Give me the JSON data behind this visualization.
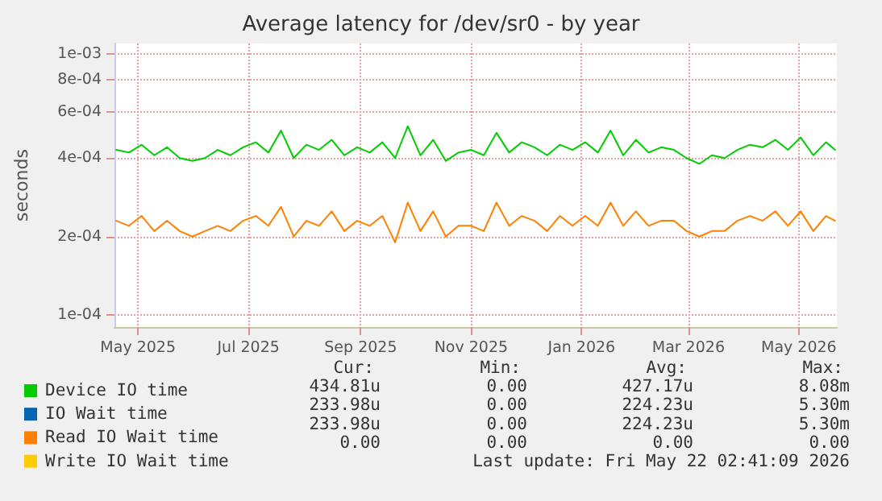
{
  "chart_data": {
    "type": "line",
    "title": "Average latency for /dev/sr0 - by year",
    "ylabel": "seconds",
    "log": "y",
    "grid": true,
    "legend": "bottom",
    "marker": "none",
    "line_style": "solid",
    "x": [
      "2025-04-19",
      "2025-04-26",
      "2025-05-03",
      "2025-05-10",
      "2025-05-17",
      "2025-05-24",
      "2025-05-31",
      "2025-06-07",
      "2025-06-14",
      "2025-06-21",
      "2025-06-28",
      "2025-07-05",
      "2025-07-12",
      "2025-07-19",
      "2025-07-26",
      "2025-08-02",
      "2025-08-09",
      "2025-08-16",
      "2025-08-23",
      "2025-08-30",
      "2025-09-06",
      "2025-09-13",
      "2025-09-20",
      "2025-09-27",
      "2025-10-04",
      "2025-10-11",
      "2025-10-18",
      "2025-10-25",
      "2025-11-01",
      "2025-11-08",
      "2025-11-15",
      "2025-11-22",
      "2025-11-29",
      "2025-12-06",
      "2025-12-13",
      "2025-12-20",
      "2025-12-27",
      "2026-01-03",
      "2026-01-10",
      "2026-01-17",
      "2026-01-24",
      "2026-01-31",
      "2026-02-07",
      "2026-02-14",
      "2026-02-21",
      "2026-02-28",
      "2026-03-07",
      "2026-03-14",
      "2026-03-21",
      "2026-03-28",
      "2026-04-04",
      "2026-04-11",
      "2026-04-18",
      "2026-04-25",
      "2026-05-02",
      "2026-05-09",
      "2026-05-16",
      "2026-05-21"
    ],
    "series": [
      {
        "name": "Device IO time",
        "color": "#00cc00",
        "values": [
          0.00043,
          0.00042,
          0.00045,
          0.00041,
          0.00044,
          0.0004,
          0.00039,
          0.0004,
          0.00043,
          0.00041,
          0.00044,
          0.00046,
          0.00042,
          0.00051,
          0.0004,
          0.00045,
          0.00043,
          0.00047,
          0.00041,
          0.00044,
          0.00042,
          0.00046,
          0.0004,
          0.00053,
          0.00041,
          0.00047,
          0.00039,
          0.00042,
          0.00043,
          0.00041,
          0.0005,
          0.00042,
          0.00046,
          0.00044,
          0.00041,
          0.00045,
          0.00043,
          0.00046,
          0.00042,
          0.00051,
          0.00041,
          0.00047,
          0.00042,
          0.00044,
          0.00043,
          0.0004,
          0.00038,
          0.00041,
          0.0004,
          0.00043,
          0.00045,
          0.00044,
          0.00047,
          0.00043,
          0.00048,
          0.00041,
          0.00046,
          0.00043
        ]
      },
      {
        "name": "IO Wait time",
        "color": "#0066b3",
        "values": [
          null,
          null,
          null,
          null,
          null,
          null,
          null,
          null,
          null,
          null,
          null,
          null,
          null,
          null,
          null,
          null,
          null,
          null,
          null,
          null,
          null,
          null,
          null,
          null,
          null,
          null,
          null,
          null,
          null,
          null,
          null,
          null,
          null,
          null,
          null,
          null,
          null,
          null,
          null,
          null,
          null,
          null,
          null,
          null,
          null,
          null,
          null,
          null,
          null,
          null,
          null,
          null,
          null,
          null,
          null,
          null,
          null,
          null
        ]
      },
      {
        "name": "Read IO Wait time",
        "color": "#ff8000",
        "values": [
          0.00023,
          0.00022,
          0.00024,
          0.00021,
          0.00023,
          0.00021,
          0.0002,
          0.00021,
          0.00022,
          0.00021,
          0.00023,
          0.00024,
          0.00022,
          0.00026,
          0.0002,
          0.00023,
          0.00022,
          0.00025,
          0.00021,
          0.00023,
          0.00022,
          0.00024,
          0.00019,
          0.00027,
          0.00021,
          0.00025,
          0.0002,
          0.00022,
          0.00022,
          0.00021,
          0.00027,
          0.00022,
          0.00024,
          0.00023,
          0.00021,
          0.00024,
          0.00022,
          0.00024,
          0.00022,
          0.00027,
          0.00022,
          0.00025,
          0.00022,
          0.00023,
          0.00023,
          0.00021,
          0.0002,
          0.00021,
          0.00021,
          0.00023,
          0.00024,
          0.00023,
          0.00025,
          0.00022,
          0.00025,
          0.00021,
          0.00024,
          0.00023
        ]
      },
      {
        "name": "Write IO Wait time",
        "color": "#ffcc00",
        "values": [
          null,
          null,
          null,
          null,
          null,
          null,
          null,
          null,
          null,
          null,
          null,
          null,
          null,
          null,
          null,
          null,
          null,
          null,
          null,
          null,
          null,
          null,
          null,
          null,
          null,
          null,
          null,
          null,
          null,
          null,
          null,
          null,
          null,
          null,
          null,
          null,
          null,
          null,
          null,
          null,
          null,
          null,
          null,
          null,
          null,
          null,
          null,
          null,
          null,
          null,
          null,
          null,
          null,
          null,
          null,
          null,
          null,
          null
        ]
      }
    ],
    "xlim": [
      "2025-04-18",
      "2026-05-22"
    ],
    "xticks": [
      {
        "value": "2025-05-01",
        "label": "May 2025"
      },
      {
        "value": "2025-07-01",
        "label": "Jul 2025"
      },
      {
        "value": "2025-09-01",
        "label": "Sep 2025"
      },
      {
        "value": "2025-11-01",
        "label": "Nov 2025"
      },
      {
        "value": "2026-01-01",
        "label": "Jan 2026"
      },
      {
        "value": "2026-03-01",
        "label": "Mar 2026"
      },
      {
        "value": "2026-05-01",
        "label": "May 2026"
      }
    ],
    "ylim": [
      9e-05,
      0.0011
    ],
    "yticks": [
      {
        "value": 0.0001,
        "label": "1e-04"
      },
      {
        "value": 0.0002,
        "label": "2e-04"
      },
      {
        "value": 0.0004,
        "label": "4e-04"
      },
      {
        "value": 0.0006,
        "label": "6e-04"
      },
      {
        "value": 0.0008,
        "label": "8e-04"
      },
      {
        "value": 0.001,
        "label": "1e-03"
      }
    ],
    "annotations": [
      "Cur:",
      "Min:",
      "Avg:",
      "Max:",
      "434.81u",
      "0.00",
      "427.17u",
      "8.08m",
      "233.98u",
      "0.00",
      "224.23u",
      "5.30m",
      "233.98u",
      "0.00",
      "224.23u",
      "5.30m",
      "0.00",
      "0.00",
      "0.00",
      "0.00",
      "Last update: Fri May 22 02:41:09 2026"
    ]
  }
}
